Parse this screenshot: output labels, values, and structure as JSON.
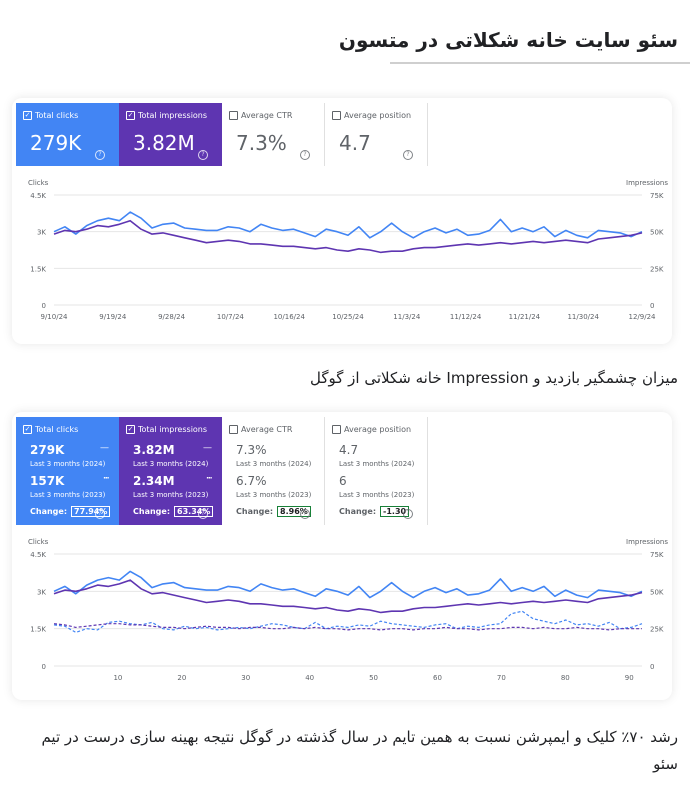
{
  "header": {
    "title": "سئو سایت خانه شکلاتی در متسون"
  },
  "caption1": "میزان چشمگیر بازدید و Impression خانه شکلاتی از گوگل",
  "caption2": "رشد ۷۰٪ کلیک و ایمپرشن نسبت به همین تایم در سال گذشته در گوگل نتیجه بهینه سازی درست در تیم سئو",
  "colors": {
    "clicks": "#4285f4",
    "impressions": "#5e35b1",
    "grid": "#e6e6e6"
  },
  "panel1": {
    "cards": [
      {
        "label": "Total clicks",
        "value": "279K",
        "checked": true,
        "style": "blue"
      },
      {
        "label": "Total impressions",
        "value": "3.82M",
        "checked": true,
        "style": "purple"
      },
      {
        "label": "Average CTR",
        "value": "7.3%",
        "checked": false,
        "style": "off"
      },
      {
        "label": "Average position",
        "value": "4.7",
        "checked": false,
        "style": "off"
      }
    ]
  },
  "panel2": {
    "cards": [
      {
        "label": "Total clicks",
        "value_current": "279K",
        "sub_current": "Last 3 months (2024)",
        "value_previous": "157K",
        "sub_previous": "Last 3 months (2023)",
        "change_label": "Change:",
        "change_value": "77.94%",
        "checked": true,
        "style": "blue"
      },
      {
        "label": "Total impressions",
        "value_current": "3.82M",
        "sub_current": "Last 3 months (2024)",
        "value_previous": "2.34M",
        "sub_previous": "Last 3 months (2023)",
        "change_label": "Change:",
        "change_value": "63.34%",
        "checked": true,
        "style": "purple"
      },
      {
        "label": "Average CTR",
        "value_current": "7.3%",
        "sub_current": "Last 3 months (2024)",
        "value_previous": "6.7%",
        "sub_previous": "Last 3 months (2023)",
        "change_label": "Change:",
        "change_value": "8.96%",
        "checked": false,
        "style": "off"
      },
      {
        "label": "Average position",
        "value_current": "4.7",
        "sub_current": "Last 3 months (2024)",
        "value_previous": "6",
        "sub_previous": "Last 3 months (2023)",
        "change_label": "Change:",
        "change_value": "-1.30",
        "checked": false,
        "style": "off"
      }
    ]
  },
  "chart_data": [
    {
      "type": "line",
      "left_axis_title": "Clicks",
      "right_axis_title": "Impressions",
      "left_ticks": [
        "0",
        "1.5K",
        "3K",
        "4.5K"
      ],
      "right_ticks": [
        "0",
        "25K",
        "50K",
        "75K"
      ],
      "ylim_left": [
        0,
        4500
      ],
      "ylim_right": [
        0,
        75000
      ],
      "x_tick_labels": [
        "9/10/24",
        "9/19/24",
        "9/28/24",
        "10/7/24",
        "10/16/24",
        "10/25/24",
        "11/3/24",
        "11/12/24",
        "11/21/24",
        "11/30/24",
        "12/9/24"
      ],
      "grid": true,
      "series": [
        {
          "name": "Clicks",
          "axis": "left",
          "color": "#4285f4",
          "values": [
            3000,
            3200,
            2900,
            3250,
            3450,
            3550,
            3450,
            3800,
            3550,
            3150,
            3300,
            3350,
            3150,
            3100,
            3050,
            3050,
            3200,
            3150,
            3000,
            3300,
            3150,
            3050,
            3100,
            2950,
            2800,
            3100,
            3000,
            2850,
            3200,
            2750,
            3000,
            3350,
            3000,
            2750,
            3000,
            3150,
            2950,
            3100,
            2850,
            2900,
            3050,
            3500,
            3000,
            3150,
            3000,
            3200,
            2800,
            3050,
            2850,
            2750,
            3050,
            3000,
            2950,
            2800,
            3000
          ]
        },
        {
          "name": "Impressions",
          "axis": "left",
          "color": "#5e35b1",
          "values": [
            2900,
            3050,
            3000,
            3100,
            3250,
            3200,
            3300,
            3450,
            3100,
            2900,
            2950,
            2850,
            2750,
            2650,
            2550,
            2600,
            2650,
            2600,
            2500,
            2500,
            2450,
            2400,
            2400,
            2350,
            2300,
            2350,
            2250,
            2200,
            2300,
            2250,
            2150,
            2200,
            2200,
            2300,
            2350,
            2350,
            2400,
            2450,
            2500,
            2450,
            2500,
            2550,
            2500,
            2550,
            2600,
            2550,
            2600,
            2650,
            2600,
            2550,
            2700,
            2750,
            2800,
            2850,
            2950
          ]
        }
      ]
    },
    {
      "type": "line",
      "left_axis_title": "Clicks",
      "right_axis_title": "Impressions",
      "left_ticks": [
        "0",
        "1.5K",
        "3K",
        "4.5K"
      ],
      "right_ticks": [
        "0",
        "25K",
        "50K",
        "75K"
      ],
      "ylim_left": [
        0,
        4500
      ],
      "ylim_right": [
        0,
        75000
      ],
      "x_tick_labels": [
        "10",
        "20",
        "30",
        "40",
        "50",
        "60",
        "70",
        "80",
        "90"
      ],
      "xlim": [
        0,
        92
      ],
      "grid": true,
      "series": [
        {
          "name": "Clicks (2024)",
          "axis": "left",
          "color": "#4285f4",
          "dashed": false,
          "values": [
            3000,
            3200,
            2900,
            3250,
            3450,
            3550,
            3450,
            3800,
            3550,
            3150,
            3300,
            3350,
            3150,
            3100,
            3050,
            3050,
            3200,
            3150,
            3000,
            3300,
            3150,
            3050,
            3100,
            2950,
            2800,
            3100,
            3000,
            2850,
            3200,
            2750,
            3000,
            3350,
            3000,
            2750,
            3000,
            3150,
            2950,
            3100,
            2850,
            2900,
            3050,
            3500,
            3000,
            3150,
            3000,
            3200,
            2800,
            3050,
            2850,
            2750,
            3050,
            3000,
            2950,
            2800,
            3000
          ]
        },
        {
          "name": "Impressions (2024)",
          "axis": "left",
          "color": "#5e35b1",
          "dashed": false,
          "values": [
            2900,
            3050,
            3000,
            3100,
            3250,
            3200,
            3300,
            3450,
            3100,
            2900,
            2950,
            2850,
            2750,
            2650,
            2550,
            2600,
            2650,
            2600,
            2500,
            2500,
            2450,
            2400,
            2400,
            2350,
            2300,
            2350,
            2250,
            2200,
            2300,
            2250,
            2150,
            2200,
            2200,
            2300,
            2350,
            2350,
            2400,
            2450,
            2500,
            2450,
            2500,
            2550,
            2500,
            2550,
            2600,
            2550,
            2600,
            2650,
            2600,
            2550,
            2700,
            2750,
            2800,
            2850,
            2950
          ]
        },
        {
          "name": "Clicks (2023)",
          "axis": "left",
          "color": "#4285f4",
          "dashed": true,
          "values": [
            1650,
            1600,
            1350,
            1500,
            1450,
            1750,
            1800,
            1700,
            1650,
            1750,
            1500,
            1450,
            1600,
            1500,
            1550,
            1450,
            1500,
            1550,
            1500,
            1600,
            1700,
            1650,
            1550,
            1500,
            1750,
            1500,
            1600,
            1550,
            1650,
            1600,
            1800,
            1700,
            1650,
            1600,
            1550,
            1650,
            1700,
            1500,
            1600,
            1550,
            1650,
            1700,
            2100,
            2200,
            1900,
            1800,
            1700,
            1850,
            1650,
            1700,
            1600,
            1750,
            1500,
            1550,
            1700
          ]
        },
        {
          "name": "Impressions (2023)",
          "axis": "left",
          "color": "#5e35b1",
          "dashed": true,
          "values": [
            1700,
            1650,
            1550,
            1600,
            1650,
            1700,
            1700,
            1650,
            1650,
            1600,
            1550,
            1550,
            1500,
            1550,
            1600,
            1550,
            1550,
            1500,
            1550,
            1550,
            1500,
            1500,
            1550,
            1500,
            1550,
            1500,
            1500,
            1450,
            1500,
            1500,
            1450,
            1500,
            1500,
            1450,
            1500,
            1500,
            1550,
            1500,
            1500,
            1450,
            1500,
            1500,
            1550,
            1550,
            1500,
            1550,
            1500,
            1500,
            1550,
            1500,
            1500,
            1450,
            1500,
            1500,
            1500
          ]
        }
      ]
    }
  ]
}
